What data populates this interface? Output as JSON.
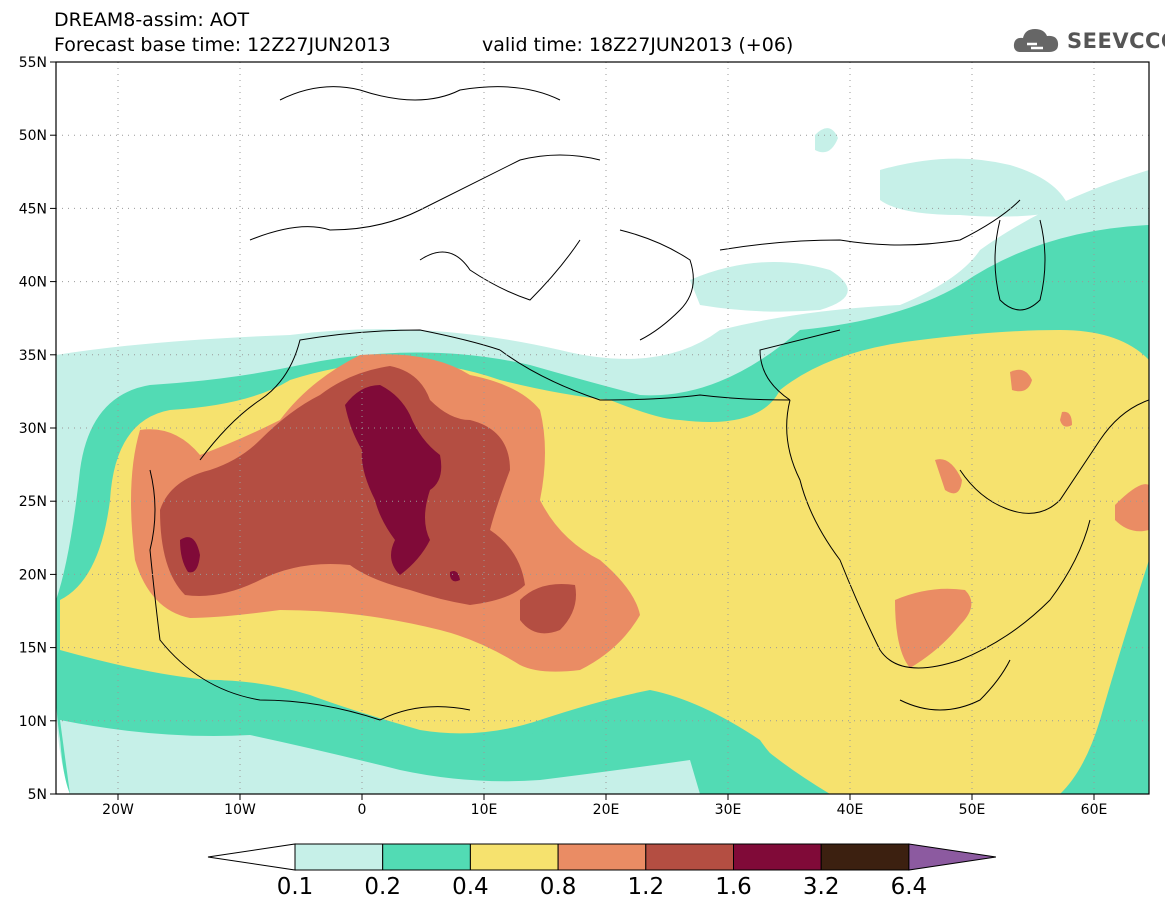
{
  "header": {
    "title": "DREAM8-assim: AOT",
    "base_time": "Forecast base time: 12Z27JUN2013",
    "valid_time": "valid time: 18Z27JUN2013 (+06)",
    "logo": "SEEVCCC"
  },
  "axes": {
    "lat_labels": [
      "55N",
      "50N",
      "45N",
      "40N",
      "35N",
      "30N",
      "25N",
      "20N",
      "15N",
      "10N",
      "5N"
    ],
    "lon_labels": [
      "20W",
      "10W",
      "0",
      "10E",
      "20E",
      "30E",
      "40E",
      "50E",
      "60E"
    ]
  },
  "colorbar": {
    "labels": [
      "0.1",
      "0.2",
      "0.4",
      "0.8",
      "1.2",
      "1.6",
      "3.2",
      "6.4"
    ],
    "colors": [
      "#ffffff",
      "#c6f0e8",
      "#52dbb4",
      "#f6e26e",
      "#ea8c64",
      "#b44e42",
      "#800a38",
      "#3c2010",
      "#8c5aa0"
    ]
  },
  "colors": {
    "c1": "#c6f0e8",
    "c2": "#52dbb4",
    "c3": "#f6e26e",
    "c4": "#ea8c64",
    "c5": "#b44e42",
    "c6": "#800a38"
  }
}
